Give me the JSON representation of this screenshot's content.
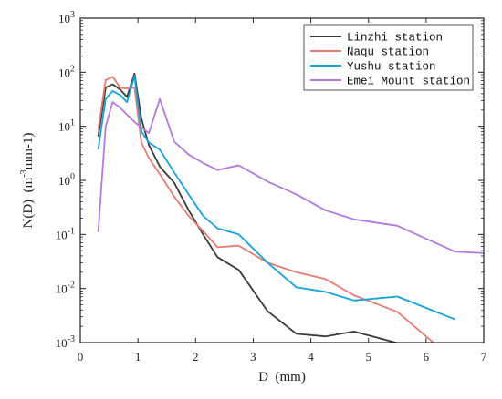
{
  "chart_data": {
    "type": "line",
    "xlabel": "D  (mm)",
    "ylabel": {
      "prefix": "N(D)  (m",
      "sup": "-3",
      "suffix": "mm-1)"
    },
    "xlim": [
      0,
      7
    ],
    "ylim": [
      0.001,
      1000
    ],
    "yscale": "log",
    "xticks": [
      0,
      1,
      2,
      3,
      4,
      5,
      6,
      7
    ],
    "yticks": [
      {
        "value": 0.001,
        "base": "10",
        "exp": "-3"
      },
      {
        "value": 0.01,
        "base": "10",
        "exp": "-2"
      },
      {
        "value": 0.1,
        "base": "10",
        "exp": "-1"
      },
      {
        "value": 1,
        "base": "10",
        "exp": "0"
      },
      {
        "value": 10,
        "base": "10",
        "exp": "1"
      },
      {
        "value": 100,
        "base": "10",
        "exp": "2"
      },
      {
        "value": 1000,
        "base": "10",
        "exp": "3"
      }
    ],
    "legend_position": "top-right",
    "series": [
      {
        "name": "Linzhi station",
        "color": "#3a3a3a",
        "points": [
          [
            0.31,
            6.5
          ],
          [
            0.44,
            52
          ],
          [
            0.56,
            60
          ],
          [
            0.69,
            48
          ],
          [
            0.81,
            35
          ],
          [
            0.94,
            95
          ],
          [
            1.06,
            14
          ],
          [
            1.19,
            4.5
          ],
          [
            1.38,
            1.8
          ],
          [
            1.63,
            0.9
          ],
          [
            1.88,
            0.28
          ],
          [
            2.13,
            0.1
          ],
          [
            2.38,
            0.038
          ],
          [
            2.75,
            0.022
          ],
          [
            3.25,
            0.0038
          ],
          [
            3.75,
            0.00145
          ],
          [
            4.25,
            0.0013
          ],
          [
            4.75,
            0.0016
          ],
          [
            5.5,
            0.00098
          ]
        ]
      },
      {
        "name": "Naqu station",
        "color": "#ea7a72",
        "points": [
          [
            0.31,
            8.5
          ],
          [
            0.44,
            72
          ],
          [
            0.56,
            82
          ],
          [
            0.69,
            52
          ],
          [
            0.81,
            50
          ],
          [
            0.94,
            52
          ],
          [
            1.06,
            5
          ],
          [
            1.19,
            2.6
          ],
          [
            1.38,
            1.3
          ],
          [
            1.63,
            0.5
          ],
          [
            1.88,
            0.22
          ],
          [
            2.13,
            0.115
          ],
          [
            2.38,
            0.058
          ],
          [
            2.75,
            0.062
          ],
          [
            3.25,
            0.03
          ],
          [
            3.75,
            0.02
          ],
          [
            4.25,
            0.015
          ],
          [
            4.75,
            0.0075
          ],
          [
            5.5,
            0.0037
          ],
          [
            6.15,
            0.00095
          ]
        ]
      },
      {
        "name": "Yushu station",
        "color": "#12a4dd",
        "points": [
          [
            0.31,
            3.7
          ],
          [
            0.44,
            32
          ],
          [
            0.56,
            45
          ],
          [
            0.69,
            38
          ],
          [
            0.81,
            28
          ],
          [
            0.94,
            85
          ],
          [
            1.06,
            8
          ],
          [
            1.19,
            5
          ],
          [
            1.38,
            3.7
          ],
          [
            1.63,
            1.4
          ],
          [
            1.88,
            0.55
          ],
          [
            2.13,
            0.22
          ],
          [
            2.38,
            0.13
          ],
          [
            2.75,
            0.1
          ],
          [
            3.25,
            0.03
          ],
          [
            3.75,
            0.0105
          ],
          [
            4.25,
            0.0087
          ],
          [
            4.75,
            0.006
          ],
          [
            5.5,
            0.0071
          ],
          [
            6.5,
            0.0027
          ]
        ]
      },
      {
        "name": "Emei Mount station",
        "color": "#b478e0",
        "points": [
          [
            0.31,
            0.11
          ],
          [
            0.44,
            10
          ],
          [
            0.56,
            28
          ],
          [
            0.69,
            22
          ],
          [
            0.94,
            12
          ],
          [
            1.19,
            7.5
          ],
          [
            1.38,
            32
          ],
          [
            1.63,
            5.2
          ],
          [
            1.88,
            3
          ],
          [
            2.13,
            2.1
          ],
          [
            2.38,
            1.55
          ],
          [
            2.75,
            1.9
          ],
          [
            3.25,
            0.95
          ],
          [
            3.75,
            0.55
          ],
          [
            4.25,
            0.28
          ],
          [
            4.75,
            0.19
          ],
          [
            5.5,
            0.145
          ],
          [
            6.5,
            0.048
          ],
          [
            7.0,
            0.045
          ]
        ]
      }
    ]
  }
}
